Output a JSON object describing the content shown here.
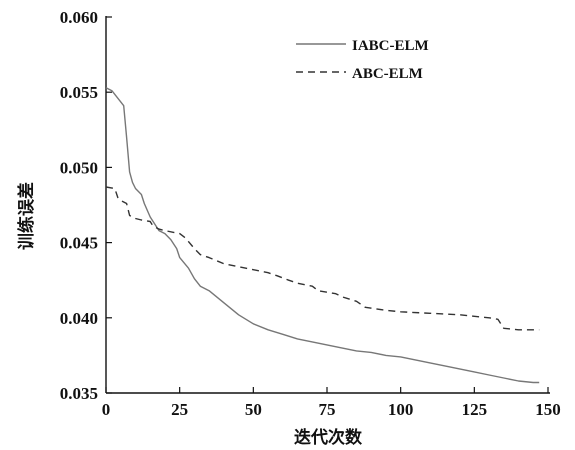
{
  "chart_data": {
    "type": "line",
    "xlabel": "迭代次数",
    "ylabel": "训练误差",
    "xlim": [
      0,
      150
    ],
    "ylim": [
      0.035,
      0.06
    ],
    "xticks": [
      "0",
      "25",
      "50",
      "75",
      "100",
      "125",
      "150"
    ],
    "yticks": [
      "0.035",
      "0.040",
      "0.045",
      "0.050",
      "0.055",
      "0.060"
    ],
    "grid": false,
    "legend_position": "top-right",
    "series": [
      {
        "name": "IABC-ELM",
        "style": "solid",
        "color": "#777777",
        "points": [
          [
            0,
            0.0553
          ],
          [
            2,
            0.0551
          ],
          [
            4,
            0.0546
          ],
          [
            6,
            0.0541
          ],
          [
            7,
            0.052
          ],
          [
            8,
            0.0497
          ],
          [
            9,
            0.049
          ],
          [
            10,
            0.0486
          ],
          [
            12,
            0.0482
          ],
          [
            13,
            0.0476
          ],
          [
            15,
            0.0467
          ],
          [
            16,
            0.0464
          ],
          [
            18,
            0.0458
          ],
          [
            20,
            0.0456
          ],
          [
            22,
            0.0452
          ],
          [
            24,
            0.0446
          ],
          [
            25,
            0.044
          ],
          [
            28,
            0.0433
          ],
          [
            30,
            0.0426
          ],
          [
            32,
            0.0421
          ],
          [
            35,
            0.0418
          ],
          [
            40,
            0.041
          ],
          [
            45,
            0.0402
          ],
          [
            50,
            0.0396
          ],
          [
            55,
            0.0392
          ],
          [
            60,
            0.0389
          ],
          [
            65,
            0.0386
          ],
          [
            70,
            0.0384
          ],
          [
            75,
            0.0382
          ],
          [
            80,
            0.038
          ],
          [
            85,
            0.0378
          ],
          [
            90,
            0.0377
          ],
          [
            95,
            0.0375
          ],
          [
            100,
            0.0374
          ],
          [
            105,
            0.0372
          ],
          [
            110,
            0.037
          ],
          [
            115,
            0.0368
          ],
          [
            120,
            0.0366
          ],
          [
            125,
            0.0364
          ],
          [
            130,
            0.0362
          ],
          [
            135,
            0.036
          ],
          [
            140,
            0.0358
          ],
          [
            145,
            0.0357
          ],
          [
            147,
            0.0357
          ]
        ]
      },
      {
        "name": "ABC-ELM",
        "style": "dashed",
        "color": "#333333",
        "points": [
          [
            0,
            0.0487
          ],
          [
            3,
            0.0486
          ],
          [
            4,
            0.048
          ],
          [
            5,
            0.0478
          ],
          [
            7,
            0.0476
          ],
          [
            8,
            0.0468
          ],
          [
            10,
            0.0466
          ],
          [
            12,
            0.0465
          ],
          [
            15,
            0.0464
          ],
          [
            16,
            0.0461
          ],
          [
            18,
            0.0459
          ],
          [
            20,
            0.0458
          ],
          [
            25,
            0.0456
          ],
          [
            27,
            0.0453
          ],
          [
            30,
            0.0446
          ],
          [
            32,
            0.0442
          ],
          [
            35,
            0.044
          ],
          [
            40,
            0.0436
          ],
          [
            45,
            0.0434
          ],
          [
            50,
            0.0432
          ],
          [
            55,
            0.043
          ],
          [
            58,
            0.0428
          ],
          [
            62,
            0.0425
          ],
          [
            65,
            0.0423
          ],
          [
            70,
            0.0421
          ],
          [
            72,
            0.0418
          ],
          [
            78,
            0.0416
          ],
          [
            80,
            0.0414
          ],
          [
            85,
            0.0411
          ],
          [
            88,
            0.0407
          ],
          [
            95,
            0.0405
          ],
          [
            100,
            0.0404
          ],
          [
            110,
            0.0403
          ],
          [
            120,
            0.0402
          ],
          [
            125,
            0.0401
          ],
          [
            130,
            0.04
          ],
          [
            133,
            0.0399
          ],
          [
            135,
            0.0393
          ],
          [
            140,
            0.0392
          ],
          [
            147,
            0.0392
          ]
        ]
      }
    ]
  }
}
